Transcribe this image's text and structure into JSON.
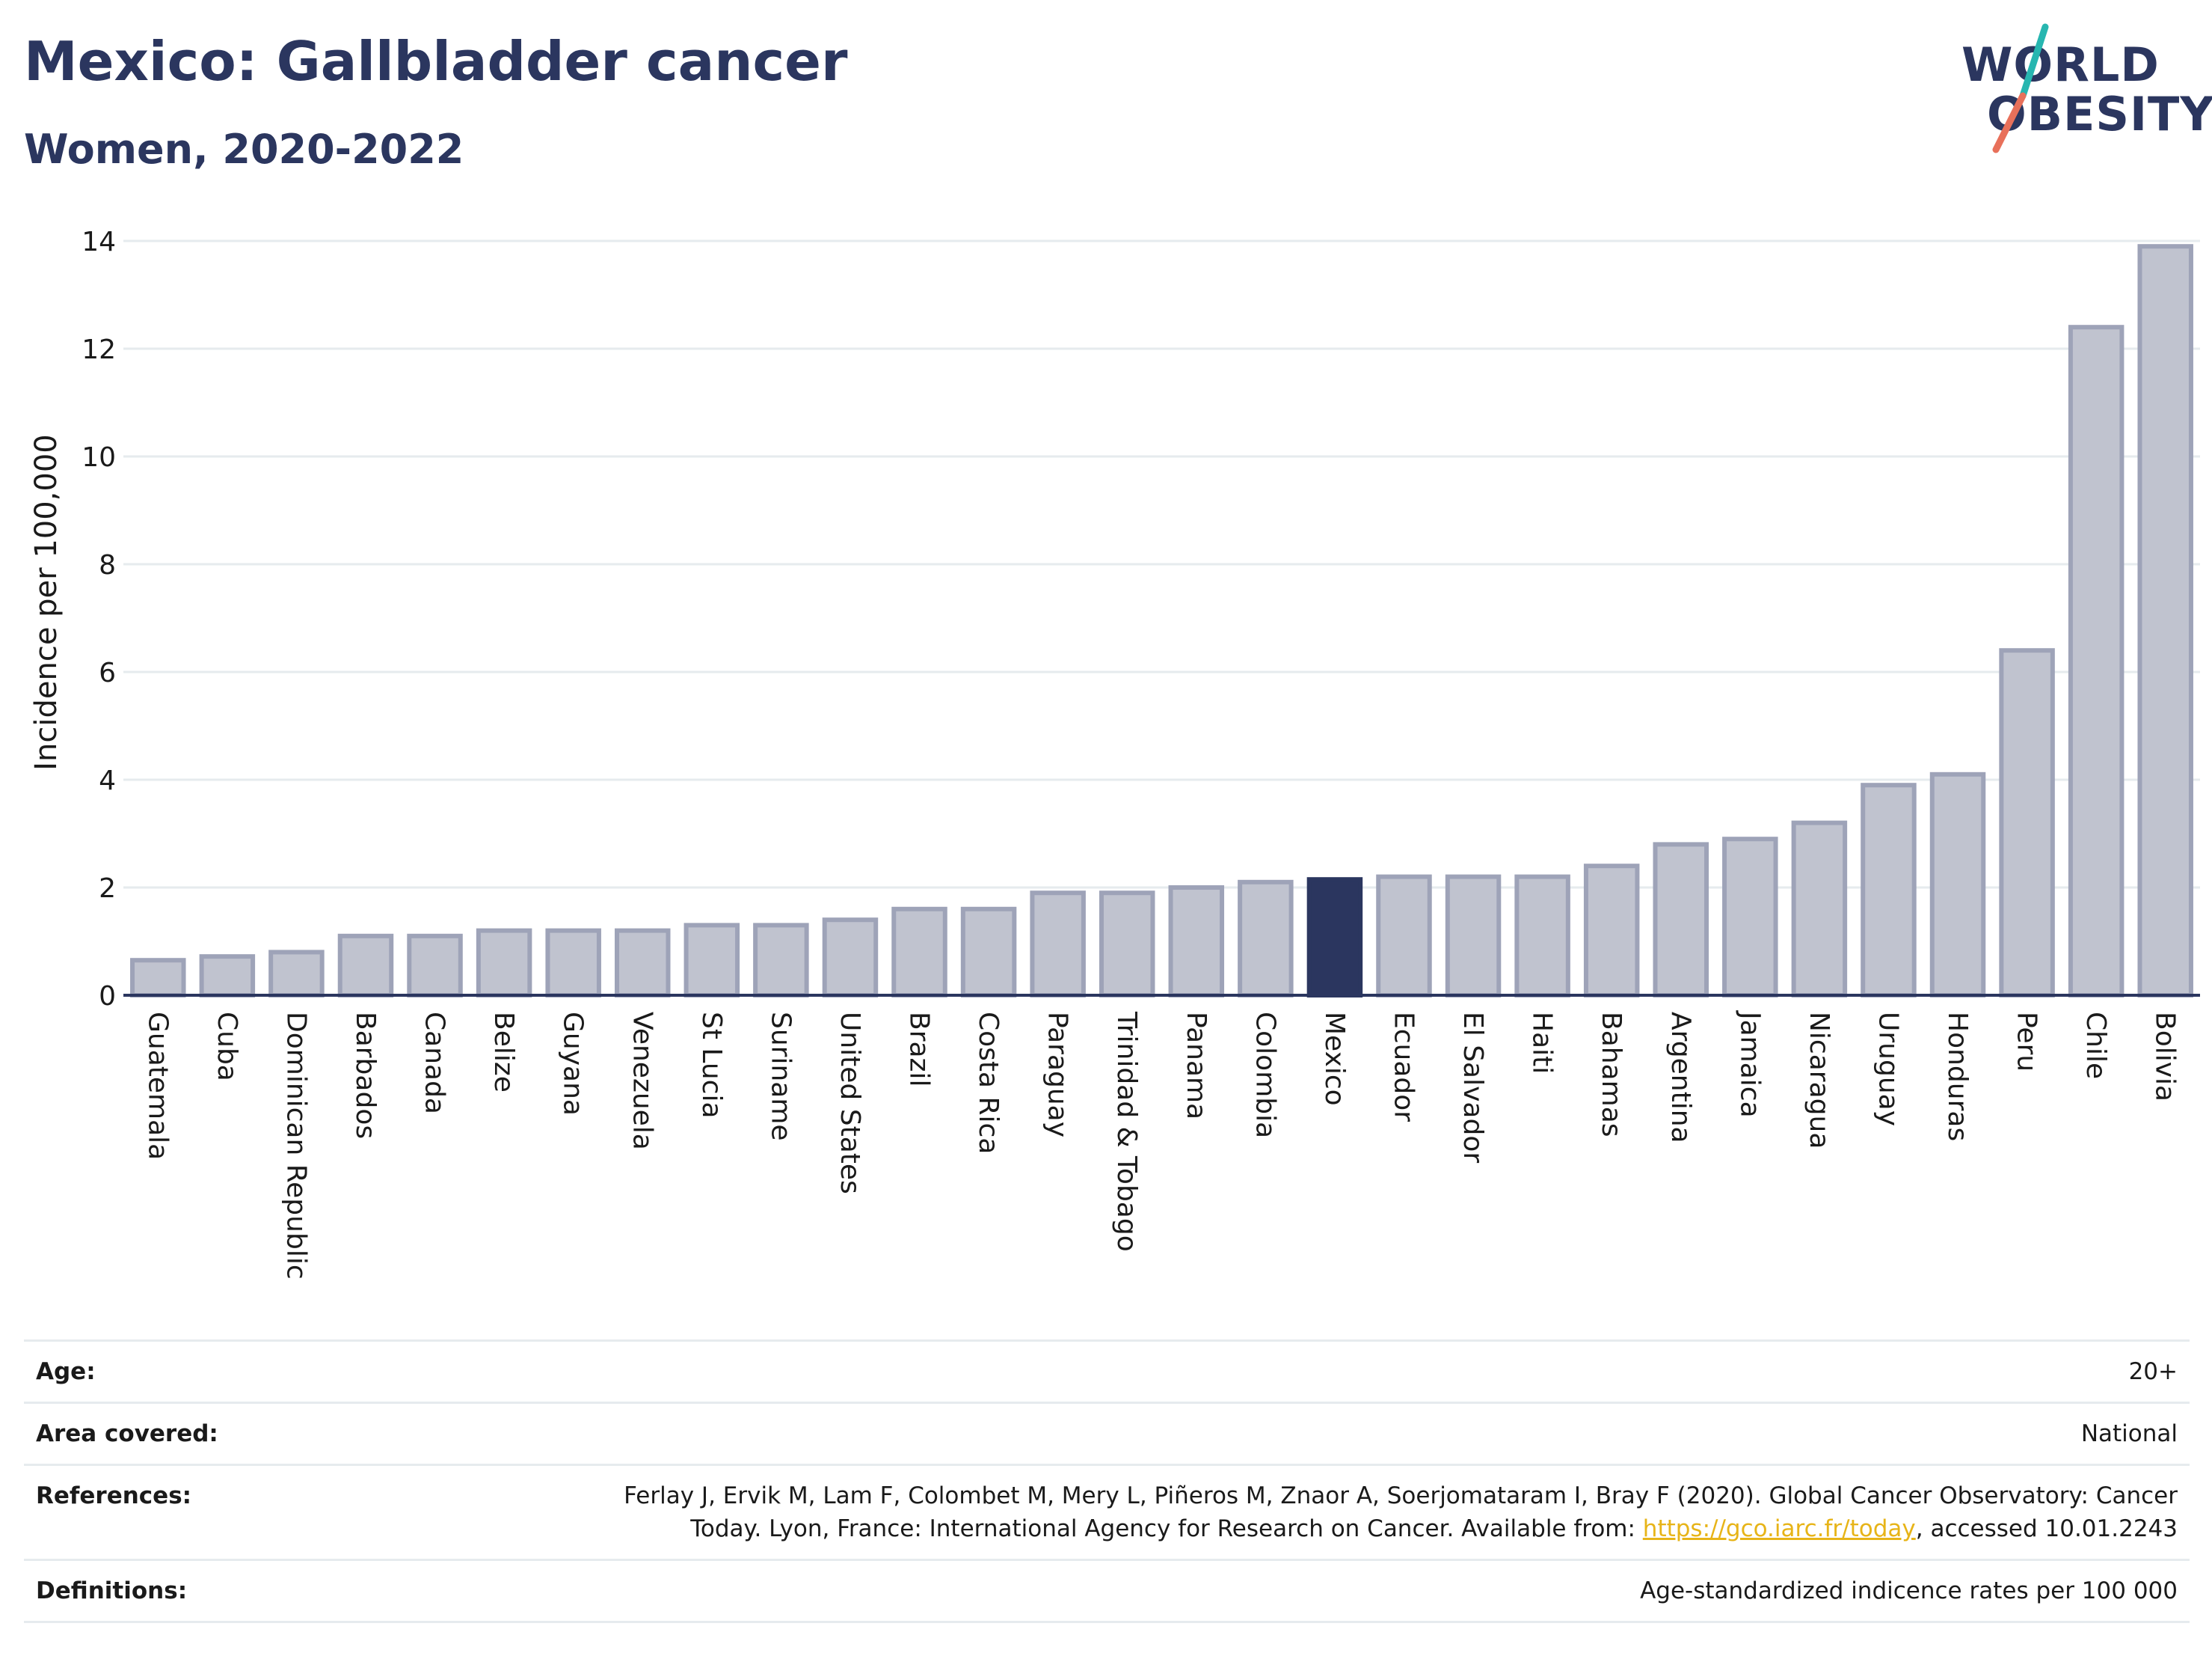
{
  "header": {
    "title": "Mexico: Gallbladder cancer",
    "subtitle": "Women, 2020-2022"
  },
  "logo": {
    "line1": "WORLD",
    "line2": "OBESITY",
    "accent_colors": [
      "#27b6b0",
      "#e8705a"
    ]
  },
  "chart_data": {
    "type": "bar",
    "categories": [
      "Guatemala",
      "Cuba",
      "Dominican Republic",
      "Barbados",
      "Canada",
      "Belize",
      "Guyana",
      "Venezuela",
      "St Lucia",
      "Suriname",
      "United States",
      "Brazil",
      "Costa Rica",
      "Paraguay",
      "Trinidad & Tobago",
      "Panama",
      "Colombia",
      "Mexico",
      "Ecuador",
      "El Salvador",
      "Haiti",
      "Bahamas",
      "Argentina",
      "Jamaica",
      "Nicaragua",
      "Uruguay",
      "Honduras",
      "Peru",
      "Chile",
      "Bolivia"
    ],
    "values": [
      0.65,
      0.72,
      0.8,
      1.1,
      1.1,
      1.2,
      1.2,
      1.2,
      1.3,
      1.3,
      1.4,
      1.6,
      1.6,
      1.9,
      1.9,
      2.0,
      2.1,
      2.15,
      2.2,
      2.2,
      2.2,
      2.4,
      2.8,
      2.9,
      3.2,
      3.9,
      4.1,
      6.4,
      12.4,
      13.9
    ],
    "highlight": "Mexico",
    "ylabel": "Incidence per 100,000",
    "xlabel": "",
    "ylim": [
      0,
      14
    ],
    "yticks": [
      0,
      2,
      4,
      6,
      8,
      10,
      12,
      14
    ],
    "grid": true,
    "colors": {
      "bar": "#c0c3cf",
      "bar_border": "#9ea3b8",
      "highlight": "#2b365f",
      "grid": "#e6ebee",
      "axis": "#2b365f"
    }
  },
  "meta": {
    "age_label": "Age:",
    "age_value": "20+",
    "area_label": "Area covered:",
    "area_value": "National",
    "references_label": "References:",
    "references_text_1": "Ferlay J, Ervik M, Lam F, Colombet M, Mery L, Piñeros M, Znaor A, Soerjomataram I, Bray F (2020). Global Cancer Observatory: Cancer Today. Lyon, France: International Agency for Research on Cancer. Available from: ",
    "references_link": "https://gco.iarc.fr/today",
    "references_text_2": ", accessed 10.01.2243",
    "definitions_label": "Definitions:",
    "definitions_value": "Age-standardized indicence rates per 100 000"
  }
}
